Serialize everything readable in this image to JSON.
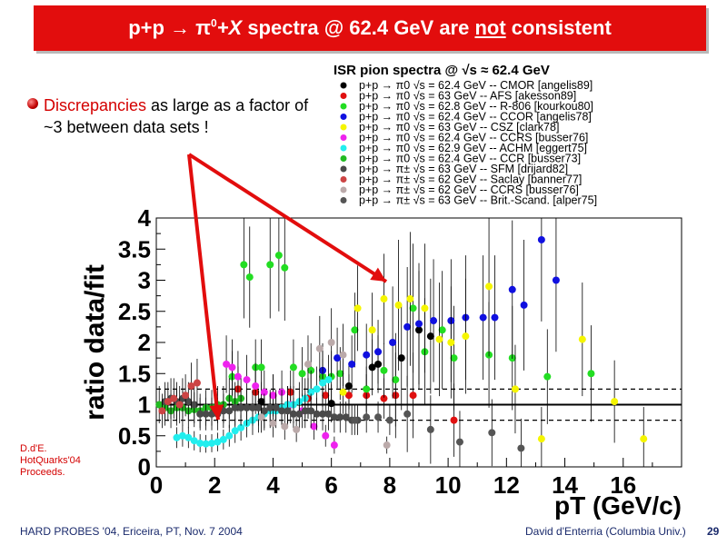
{
  "slide": {
    "title_prefix": "p+p → π",
    "title_mid": "+X",
    "title_suffix": " spectra @ 62.4 GeV are ",
    "title_underlined": "not",
    "title_end": " consistent",
    "bullet_highlight": "Discrepancies",
    "bullet_rest": " as large as a factor of ~3 between data sets !",
    "side_note_lines": [
      "D.d'E.",
      "HotQuarks'04",
      "Proceeds."
    ],
    "footer_left": "HARD PROBES '04, Ericeira, PT, Nov. 7 2004",
    "footer_right": "David d'Enterria (Columbia Univ.)",
    "slide_number": "29",
    "colors": {
      "title_bg": "#e20d0d",
      "arrow": "#e20d0d",
      "footer": "#1a2a6c"
    }
  },
  "chart_data": {
    "type": "scatter",
    "legend_title": "ISR pion spectra @ √s ≈ 62.4 GeV",
    "xlabel": "pT (GeV/c)",
    "ylabel": "ratio data/fit",
    "xlim": [
      0,
      18
    ],
    "ylim": [
      0,
      4
    ],
    "x_ticks": [
      "0",
      "2",
      "4",
      "6",
      "8",
      "10",
      "12",
      "14",
      "16"
    ],
    "y_ticks": [
      "0",
      "0.5",
      "1",
      "1.5",
      "2",
      "2.5",
      "3",
      "3.5",
      "4"
    ],
    "reference_lines": [
      {
        "y": 1.0,
        "style": "solid"
      },
      {
        "y": 1.25,
        "style": "dashed"
      },
      {
        "y": 0.75,
        "style": "dashed"
      }
    ],
    "legend_position": "top-right (outside plot)",
    "series": [
      {
        "name": "p+p → π0 √s = 62.4 GeV -- CMOR [angelis89]",
        "color": "#000000",
        "x": [
          3.6,
          4.5,
          5.2,
          6.0,
          6.6,
          7.4,
          7.6,
          8.4,
          9.0,
          9.4
        ],
        "y": [
          1.05,
          1.0,
          1.1,
          1.02,
          1.3,
          1.6,
          1.65,
          1.75,
          2.2,
          2.1
        ]
      },
      {
        "name": "p+p → π0 √s = 63 GeV -- AFS [akesson89]",
        "color": "#e01010",
        "x": [
          2.8,
          3.4,
          4.0,
          4.6,
          5.2,
          5.8,
          6.6,
          7.2,
          7.8,
          8.2,
          8.8,
          10.2
        ],
        "y": [
          1.25,
          1.2,
          1.15,
          1.2,
          1.1,
          1.15,
          1.15,
          1.15,
          1.1,
          1.15,
          1.15,
          0.75
        ]
      },
      {
        "name": "p+p → π0 √s = 62.8 GeV -- R-806 [kourkou80]",
        "color": "#22dd22",
        "x": [
          2.6,
          3.0,
          3.2,
          3.4,
          3.6,
          3.9,
          4.2,
          4.4,
          4.7,
          5.0,
          5.3,
          5.7,
          6.0,
          6.3,
          6.8,
          7.2,
          7.8,
          8.2,
          8.8,
          9.2,
          9.8,
          10.2,
          11.4,
          12.2,
          13.4,
          14.9
        ],
        "y": [
          1.45,
          3.25,
          3.05,
          1.6,
          1.6,
          3.25,
          3.4,
          3.2,
          1.6,
          1.5,
          1.55,
          1.45,
          1.45,
          1.5,
          2.2,
          1.25,
          1.55,
          1.4,
          2.55,
          1.85,
          2.2,
          1.75,
          1.8,
          1.75,
          1.45,
          1.5
        ]
      },
      {
        "name": "p+p → π0 √s = 62.4 GeV -- CCOR [angelis78]",
        "color": "#1010e0",
        "x": [
          5.7,
          6.2,
          6.7,
          7.2,
          7.6,
          8.1,
          8.6,
          9.0,
          9.5,
          10.1,
          10.6,
          11.2,
          11.6,
          12.2,
          12.6,
          13.2,
          13.7
        ],
        "y": [
          1.55,
          1.75,
          1.65,
          1.8,
          1.85,
          2.0,
          2.25,
          2.3,
          2.35,
          2.35,
          2.4,
          2.4,
          2.4,
          2.85,
          2.6,
          3.65,
          3.0
        ]
      },
      {
        "name": "p+p → π0 √s = 63 GeV -- CSZ [clark78]",
        "color": "#f5f500",
        "x": [
          6.4,
          6.9,
          7.4,
          7.8,
          8.3,
          8.7,
          9.2,
          9.7,
          10.1,
          10.6,
          11.4,
          12.3,
          13.2,
          14.6,
          15.7,
          16.7
        ],
        "y": [
          1.2,
          2.55,
          2.2,
          2.7,
          2.6,
          2.7,
          2.55,
          2.05,
          2.0,
          2.1,
          2.9,
          1.25,
          0.45,
          2.05,
          1.05,
          0.45
        ]
      },
      {
        "name": "p+p → π0 √s = 62.4 GeV -- CCRS [busser76]",
        "color": "#ee22ee",
        "x": [
          2.4,
          2.6,
          2.8,
          3.1,
          3.4,
          3.7,
          4.0,
          4.3,
          4.6,
          5.0,
          5.4,
          5.8,
          6.1
        ],
        "y": [
          1.65,
          1.6,
          1.45,
          1.4,
          1.3,
          1.2,
          1.15,
          1.2,
          1.0,
          0.9,
          0.65,
          0.5,
          0.35
        ]
      },
      {
        "name": "p+p → π0 √s = 62.9 GeV -- ACHM [eggert75]",
        "color": "#22eeee",
        "x": [
          0.7,
          0.9,
          1.1,
          1.3,
          1.5,
          1.7,
          1.9,
          2.1,
          2.3,
          2.5,
          2.7,
          2.9,
          3.1,
          3.3,
          3.5,
          3.7,
          3.9,
          4.1,
          4.3,
          4.5,
          4.7,
          4.9,
          5.1,
          5.3,
          5.5,
          5.7,
          5.9
        ],
        "y": [
          0.47,
          0.5,
          0.47,
          0.42,
          0.38,
          0.37,
          0.38,
          0.4,
          0.44,
          0.5,
          0.58,
          0.63,
          0.7,
          0.75,
          0.8,
          0.85,
          0.9,
          0.9,
          0.95,
          1.0,
          1.0,
          1.05,
          1.1,
          1.2,
          1.25,
          1.35,
          1.4
        ]
      },
      {
        "name": "p+p → π0 √s = 62.4 GeV -- CCR [busser73]",
        "color": "#22bb22",
        "x": [
          0.1,
          0.3,
          0.5,
          0.7,
          0.9,
          1.1,
          1.3,
          1.5,
          1.7,
          1.9,
          2.1,
          2.3,
          2.5,
          2.7,
          2.9
        ],
        "y": [
          1.0,
          0.95,
          0.9,
          0.95,
          0.95,
          0.9,
          0.92,
          0.9,
          0.95,
          0.95,
          1.0,
          1.0,
          1.1,
          1.05,
          1.1
        ]
      },
      {
        "name": "p+p → π± √s = 63 GeV -- SFM [drijard82]",
        "color": "#4a4a4a",
        "x": [
          0.3,
          0.5,
          0.7,
          0.9,
          1.1,
          1.3,
          1.5,
          1.7,
          1.9,
          2.1,
          2.3,
          2.5,
          2.7,
          2.9,
          3.1,
          3.3,
          3.5,
          3.7,
          3.9,
          4.1,
          4.3,
          4.5,
          4.7,
          4.9,
          5.1,
          5.3,
          5.5,
          5.7,
          5.9,
          6.1,
          6.3,
          6.5,
          6.7,
          6.9
        ],
        "y": [
          1.05,
          1.1,
          1.05,
          1.1,
          1.05,
          1.0,
          0.85,
          0.85,
          0.85,
          0.85,
          0.9,
          0.9,
          0.95,
          0.95,
          0.95,
          0.95,
          0.95,
          0.9,
          0.95,
          0.95,
          0.9,
          0.9,
          0.85,
          0.85,
          0.9,
          0.9,
          0.85,
          0.85,
          0.85,
          0.8,
          0.8,
          0.8,
          0.75,
          0.75
        ]
      },
      {
        "name": "p+p → π± √s = 62 GeV -- Saclay [banner77]",
        "color": "#cc4444",
        "x": [
          0.2,
          0.4,
          0.6,
          0.8,
          1.0,
          1.2,
          1.4
        ],
        "y": [
          0.9,
          1.05,
          1.1,
          1.0,
          1.15,
          1.3,
          1.35
        ]
      },
      {
        "name": "p+p → π± √s = 62 GeV -- CCRS [busser76]",
        "color": "#bbaaaa",
        "x": [
          3.6,
          4.0,
          4.4,
          4.8,
          5.2,
          5.6,
          6.0,
          6.4,
          7.9
        ],
        "y": [
          0.8,
          0.7,
          0.65,
          0.6,
          1.65,
          1.9,
          2.0,
          1.8,
          0.35
        ]
      },
      {
        "name": "p+p → π± √s = 63 GeV -- Brit.-Scand. [alper75]",
        "color": "#555555",
        "x": [
          6.8,
          7.2,
          7.6,
          8.0,
          8.6,
          9.4,
          10.4,
          11.5,
          12.5
        ],
        "y": [
          0.75,
          0.8,
          0.8,
          0.75,
          0.85,
          0.6,
          0.4,
          0.55,
          0.3
        ]
      }
    ]
  }
}
